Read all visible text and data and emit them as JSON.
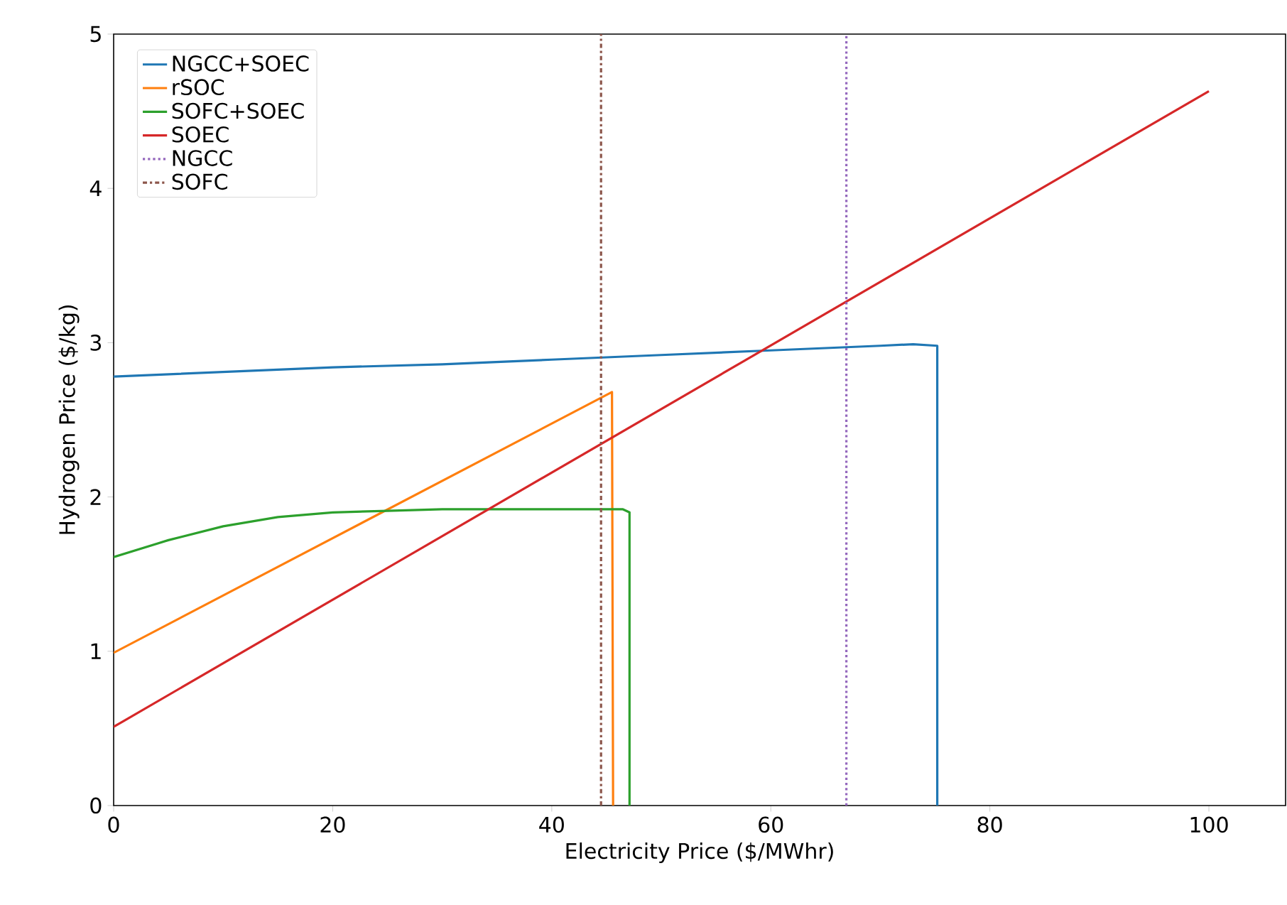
{
  "chart_data": {
    "type": "line",
    "xlabel": "Electricity Price ($/MWhr)",
    "ylabel": "Hydrogen Price ($/kg)",
    "xlim": [
      0,
      107
    ],
    "ylim": [
      0,
      5
    ],
    "xticks": [
      0,
      20,
      40,
      60,
      80,
      100
    ],
    "yticks": [
      0,
      1,
      2,
      3,
      4,
      5
    ],
    "legend": "top left",
    "grid": false,
    "series": [
      {
        "name": "NGCC+SOEC",
        "color": "#1f77b4",
        "x": [
          0,
          10,
          20,
          30,
          40,
          50,
          60,
          70,
          73,
          75.2,
          75.2
        ],
        "values": [
          2.78,
          2.81,
          2.84,
          2.86,
          2.89,
          2.92,
          2.95,
          2.98,
          2.99,
          2.98,
          0
        ]
      },
      {
        "name": "rSOC",
        "color": "#ff7f0e",
        "x": [
          0,
          45.5,
          45.6
        ],
        "values": [
          0.99,
          2.68,
          0
        ]
      },
      {
        "name": "SOFC+SOEC",
        "color": "#2ca02c",
        "x": [
          0,
          5,
          10,
          15,
          20,
          25,
          30,
          40,
          46.5,
          47.1,
          47.1
        ],
        "values": [
          1.61,
          1.72,
          1.81,
          1.87,
          1.9,
          1.91,
          1.92,
          1.92,
          1.92,
          1.9,
          0
        ]
      },
      {
        "name": "SOEC",
        "color": "#d62728",
        "x": [
          0,
          100
        ],
        "values": [
          0.51,
          4.63
        ]
      },
      {
        "name": "NGCC",
        "color": "#9467bd",
        "line_style": "dotted",
        "x": [
          66.9,
          66.9
        ],
        "values": [
          0,
          5
        ]
      },
      {
        "name": "SOFC",
        "color": "#8c564b",
        "line_style": "dashdot",
        "x": [
          44.5,
          44.5
        ],
        "values": [
          0,
          5
        ]
      }
    ]
  }
}
